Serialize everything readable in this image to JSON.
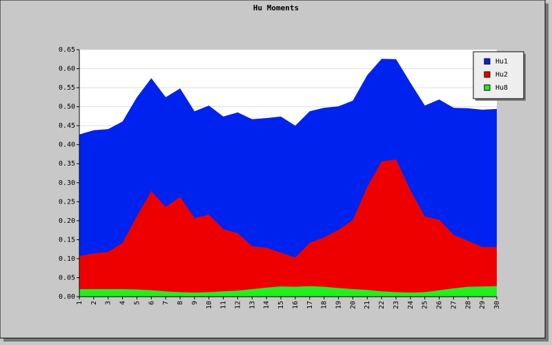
{
  "chart_data": {
    "type": "area",
    "title": "Hu Moments",
    "categories": [
      "1",
      "2",
      "3",
      "4",
      "5",
      "6",
      "7",
      "8",
      "9",
      "10",
      "11",
      "12",
      "13",
      "14",
      "15",
      "16",
      "17",
      "18",
      "19",
      "20",
      "21",
      "22",
      "23",
      "24",
      "25",
      "26",
      "27",
      "28",
      "29",
      "30"
    ],
    "series": [
      {
        "name": "Hu1",
        "color": "#0022ee",
        "values": [
          0.427,
          0.438,
          0.441,
          0.461,
          0.525,
          0.575,
          0.525,
          0.548,
          0.488,
          0.503,
          0.474,
          0.485,
          0.467,
          0.47,
          0.474,
          0.45,
          0.488,
          0.497,
          0.501,
          0.516,
          0.583,
          0.626,
          0.625,
          0.563,
          0.503,
          0.519,
          0.497,
          0.496,
          0.492,
          0.494
        ]
      },
      {
        "name": "Hu2",
        "color": "#ee0000",
        "values": [
          0.107,
          0.114,
          0.118,
          0.142,
          0.212,
          0.278,
          0.236,
          0.263,
          0.207,
          0.216,
          0.178,
          0.167,
          0.133,
          0.129,
          0.116,
          0.103,
          0.142,
          0.156,
          0.176,
          0.202,
          0.289,
          0.356,
          0.361,
          0.28,
          0.211,
          0.203,
          0.163,
          0.147,
          0.131,
          0.131
        ]
      },
      {
        "name": "Hu8",
        "color": "#22ee22",
        "values": [
          0.02,
          0.02,
          0.02,
          0.02,
          0.019,
          0.017,
          0.014,
          0.012,
          0.011,
          0.012,
          0.014,
          0.016,
          0.02,
          0.024,
          0.027,
          0.026,
          0.028,
          0.026,
          0.023,
          0.02,
          0.018,
          0.014,
          0.012,
          0.011,
          0.012,
          0.017,
          0.022,
          0.026,
          0.027,
          0.028
        ]
      }
    ],
    "ylim": [
      0,
      0.65
    ],
    "yticks": [
      {
        "value": 0,
        "label": "0.00"
      },
      {
        "value": 0.05,
        "label": "0.05"
      },
      {
        "value": 0.1,
        "label": "0.10"
      },
      {
        "value": 0.15,
        "label": "0.15"
      },
      {
        "value": 0.2,
        "label": "0.20"
      },
      {
        "value": 0.25,
        "label": "0.25"
      },
      {
        "value": 0.3,
        "label": "0.30"
      },
      {
        "value": 0.35,
        "label": "0.35"
      },
      {
        "value": 0.4,
        "label": "0.40"
      },
      {
        "value": 0.45,
        "label": "0.45"
      },
      {
        "value": 0.5,
        "label": "0.50"
      },
      {
        "value": 0.55,
        "label": "0.55"
      },
      {
        "value": 0.6,
        "label": "0.60"
      },
      {
        "value": 0.65,
        "label": "0.65"
      }
    ],
    "grid": true,
    "legend": "top-right"
  }
}
